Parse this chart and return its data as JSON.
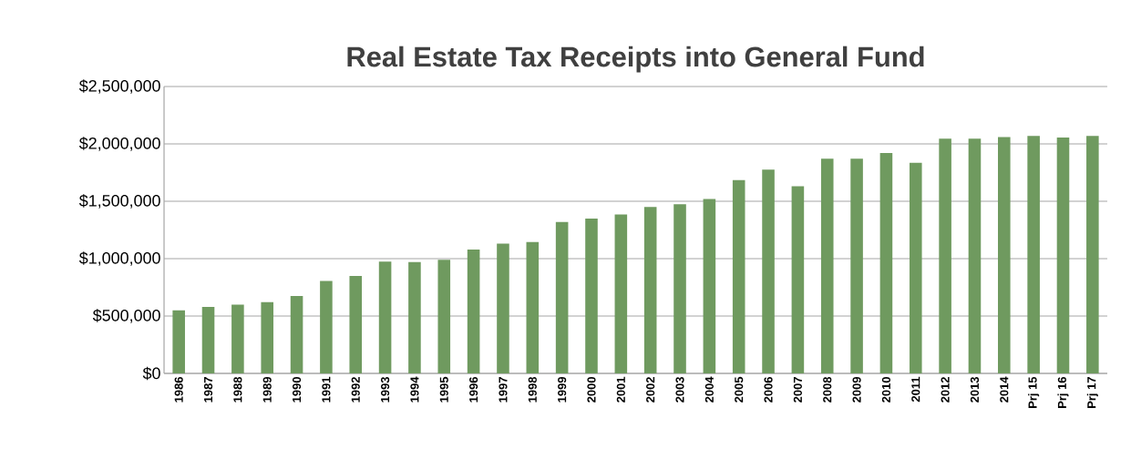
{
  "chart_data": {
    "type": "bar",
    "title": "Real Estate Tax Receipts into General Fund",
    "categories": [
      "1986",
      "1987",
      "1988",
      "1989",
      "1990",
      "1991",
      "1992",
      "1993",
      "1994",
      "1995",
      "1996",
      "1997",
      "1998",
      "1999",
      "2000",
      "2001",
      "2002",
      "2003",
      "2004",
      "2005",
      "2006",
      "2007",
      "2008",
      "2009",
      "2010",
      "2011",
      "2012",
      "2013",
      "2014",
      "Prj 15",
      "Prj 16",
      "Prj 17"
    ],
    "values": [
      550000,
      580000,
      600000,
      620000,
      675000,
      805000,
      850000,
      975000,
      970000,
      990000,
      1080000,
      1130000,
      1145000,
      1320000,
      1350000,
      1385000,
      1450000,
      1475000,
      1520000,
      1685000,
      1775000,
      1630000,
      1870000,
      1870000,
      1920000,
      1835000,
      2045000,
      2045000,
      2060000,
      2070000,
      2055000,
      2070000
    ],
    "color": "#6f9a5f",
    "ylim": [
      0,
      2500000
    ],
    "yticks": [
      {
        "value": 0,
        "label": "$0"
      },
      {
        "value": 500000,
        "label": "$500,000"
      },
      {
        "value": 1000000,
        "label": "$1,000,000"
      },
      {
        "value": 1500000,
        "label": "$1,500,000"
      },
      {
        "value": 2000000,
        "label": "$2,000,000"
      },
      {
        "value": 2500000,
        "label": "$2,500,000"
      }
    ],
    "grid": "y"
  }
}
